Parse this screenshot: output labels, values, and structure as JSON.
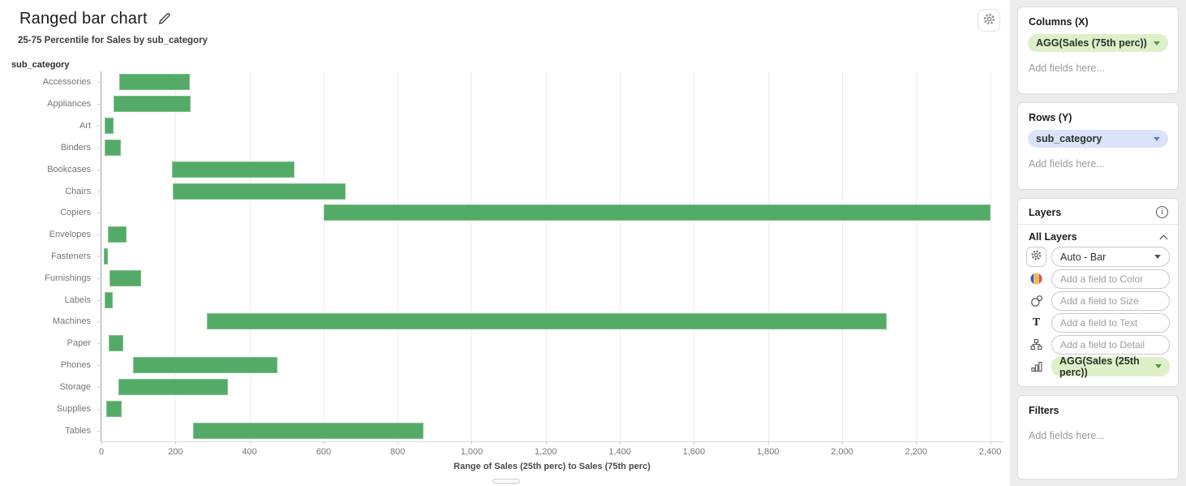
{
  "header": {
    "title": "Ranged bar chart",
    "subtitle": "25-75 Percentile for Sales by sub_category"
  },
  "colors": {
    "bar": "#54ab68",
    "bar_border": "#7dc28b",
    "columns_pill_bg": "#def0c8",
    "columns_pill_caret": "#3f9e43",
    "rows_pill_bg": "#dbe3fa",
    "rows_pill_caret": "#5b79e8"
  },
  "chart_data": {
    "type": "bar",
    "subtype": "horizontal-range",
    "y_field_label": "sub_category",
    "categories": [
      "Accessories",
      "Appliances",
      "Art",
      "Binders",
      "Bookcases",
      "Chairs",
      "Copiers",
      "Envelopes",
      "Fasteners",
      "Furnishings",
      "Labels",
      "Machines",
      "Paper",
      "Phones",
      "Storage",
      "Supplies",
      "Tables"
    ],
    "series": [
      {
        "name": "Sales (25th perc)",
        "values": [
          48,
          33,
          9,
          9,
          190,
          192,
          600,
          18,
          7,
          23,
          8,
          285,
          20,
          85,
          46,
          13,
          248
        ]
      },
      {
        "name": "Sales (75th perc)",
        "values": [
          238,
          240,
          33,
          53,
          522,
          660,
          2400,
          68,
          18,
          108,
          30,
          2120,
          60,
          475,
          342,
          54,
          870
        ]
      }
    ],
    "xlabel": "Range of Sales (25th perc) to Sales (75th perc)",
    "xticks": [
      0,
      200,
      400,
      600,
      800,
      1000,
      1200,
      1400,
      1600,
      1800,
      2000,
      2200,
      2400
    ],
    "xtick_labels": [
      "0",
      "200",
      "400",
      "600",
      "800",
      "1,000",
      "1,200",
      "1,400",
      "1,600",
      "1,800",
      "2,000",
      "2,200",
      "2,400"
    ],
    "xlim": [
      0,
      2436
    ],
    "grid": "vertical",
    "legend": "none"
  },
  "sidebar": {
    "columns": {
      "title": "Columns (X)",
      "pill": "AGG(Sales (75th perc))",
      "placeholder": "Add fields here..."
    },
    "rows": {
      "title": "Rows (Y)",
      "pill": "sub_category",
      "placeholder": "Add fields here..."
    },
    "layers": {
      "title": "Layers",
      "all_layers_label": "All Layers",
      "mark_type": "Auto - Bar",
      "fields": [
        {
          "icon": "color-icon",
          "placeholder": "Add a field to Color"
        },
        {
          "icon": "size-icon",
          "placeholder": "Add a field to Size"
        },
        {
          "icon": "text-icon",
          "placeholder": "Add a field to Text"
        },
        {
          "icon": "detail-icon",
          "placeholder": "Add a field to Detail"
        }
      ],
      "measure_pill": "AGG(Sales (25th perc))"
    },
    "filters": {
      "title": "Filters",
      "placeholder": "Add fields here..."
    }
  }
}
